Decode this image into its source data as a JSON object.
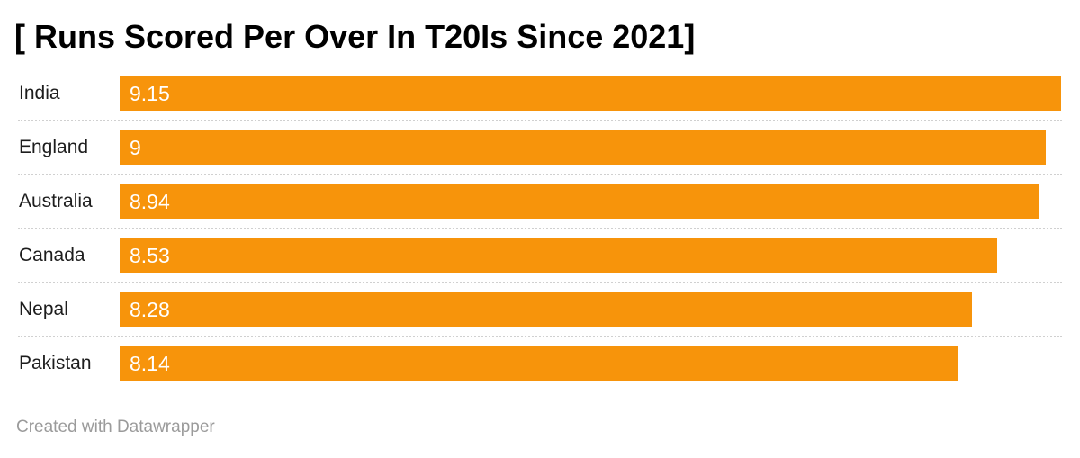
{
  "chart_data": {
    "type": "bar",
    "orientation": "horizontal",
    "title": "[ Runs Scored Per Over In T20Is Since 2021]",
    "categories": [
      "India",
      "England",
      "Australia",
      "Canada",
      "Nepal",
      "Pakistan"
    ],
    "values": [
      9.15,
      9,
      8.94,
      8.53,
      8.28,
      8.14
    ],
    "value_labels": [
      "9.15",
      "9",
      "8.94",
      "8.53",
      "8.28",
      "8.14"
    ],
    "xlabel": "",
    "ylabel": "",
    "xlim": [
      0,
      9.15
    ],
    "grid": false,
    "legend": "none",
    "value_label_position": "inside-start",
    "bar_color": "#f7940b",
    "separator_color": "#d0d0d0"
  },
  "footer": {
    "credit": "Created with Datawrapper"
  },
  "colors": {
    "background": "#ffffff",
    "title_text": "#000000",
    "category_text": "#1d1d1d",
    "value_text": "#ffffff",
    "bar": "#f7940b",
    "credit_text": "#9b9b9b"
  }
}
